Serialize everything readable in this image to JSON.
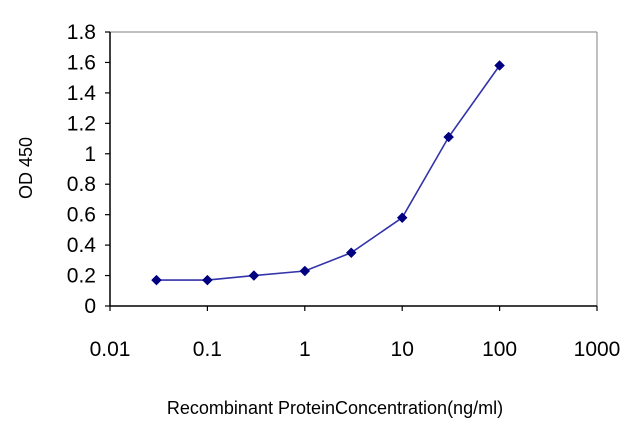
{
  "chart_data": {
    "type": "line",
    "title": "",
    "xlabel": "Recombinant ProteinConcentration(ng/ml)",
    "ylabel": "OD 450",
    "x_scale": "log",
    "xlim": [
      0.01,
      1000
    ],
    "ylim": [
      0,
      1.8
    ],
    "x_tick_labels": [
      "0.01",
      "0.1",
      "1",
      "10",
      "100",
      "1000"
    ],
    "y_tick_labels": [
      "0",
      "0.2",
      "0.4",
      "0.6",
      "0.8",
      "1",
      "1.2",
      "1.4",
      "1.6",
      "1.8"
    ],
    "grid": false,
    "legend": "none",
    "colors": {
      "line": "#3333aa",
      "marker": "#000080",
      "axis": "#000000",
      "frame": "#808080"
    },
    "series": [
      {
        "x": [
          0.03,
          0.1,
          0.3,
          1,
          3,
          10,
          30,
          100
        ],
        "y": [
          0.17,
          0.17,
          0.2,
          0.23,
          0.35,
          0.58,
          1.11,
          1.58
        ]
      }
    ]
  }
}
